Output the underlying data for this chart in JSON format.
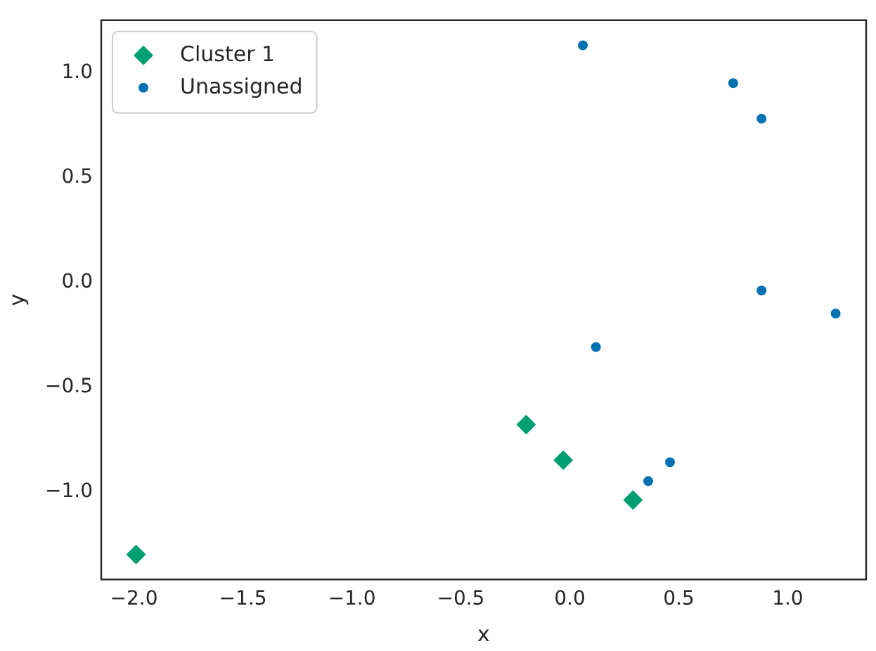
{
  "chart_data": {
    "type": "scatter",
    "xlabel": "x",
    "ylabel": "y",
    "xlim": [
      -2.15,
      1.36
    ],
    "ylim": [
      -1.42,
      1.25
    ],
    "xticks": [
      {
        "value": -2,
        "label": "−2.0"
      },
      {
        "value": -1.5,
        "label": "−1.5"
      },
      {
        "value": -1,
        "label": "−1.0"
      },
      {
        "value": -0.5,
        "label": "−0.5"
      },
      {
        "value": 0,
        "label": "0.0"
      },
      {
        "value": 0.5,
        "label": "0.5"
      },
      {
        "value": 1,
        "label": "1.0"
      }
    ],
    "yticks": [
      {
        "value": -1,
        "label": "−1.0"
      },
      {
        "value": -0.5,
        "label": "−0.5"
      },
      {
        "value": 0,
        "label": "0.0"
      },
      {
        "value": 0.5,
        "label": "0.5"
      },
      {
        "value": 1,
        "label": "1.0"
      }
    ],
    "grid": false,
    "legend": "top left",
    "series": [
      {
        "name": "Cluster 1",
        "color": "#009e73",
        "marker": "diamond",
        "x": [
          -0.2,
          -0.03,
          0.29,
          -1.99
        ],
        "values": [
          -0.68,
          -0.85,
          -1.04,
          -1.3
        ]
      },
      {
        "name": "Unassigned",
        "color": "#0072b2",
        "marker": "circle",
        "x": [
          0.06,
          0.75,
          0.88,
          0.88,
          1.22,
          0.12,
          0.46,
          0.36
        ],
        "values": [
          1.13,
          0.95,
          0.78,
          -0.04,
          -0.15,
          -0.31,
          -0.86,
          -0.95
        ]
      }
    ]
  }
}
